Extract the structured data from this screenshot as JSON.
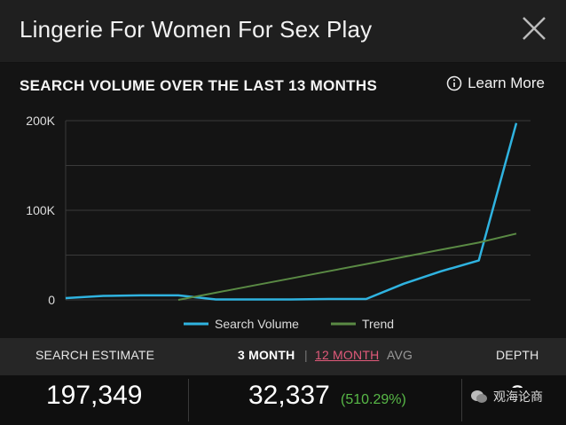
{
  "header": {
    "title": "Lingerie For Women For Sex Play"
  },
  "chart_section": {
    "title": "SEARCH VOLUME OVER THE LAST 13 MONTHS",
    "learn_more": "Learn More"
  },
  "chart_data": {
    "type": "line",
    "x": [
      1,
      2,
      3,
      4,
      5,
      6,
      7,
      8,
      9,
      10,
      11,
      12,
      13
    ],
    "ylim": [
      0,
      200000
    ],
    "yticks": [
      0,
      100000,
      200000
    ],
    "ytick_labels": [
      "0",
      "100K",
      "200K"
    ],
    "series": [
      {
        "name": "Search Volume",
        "color": "#2fb3e0",
        "values": [
          2000,
          4500,
          5000,
          5000,
          500,
          500,
          500,
          1000,
          1000,
          18000,
          32000,
          44000,
          197349
        ]
      },
      {
        "name": "Trend",
        "color": "#5a8a44",
        "values": [
          null,
          null,
          null,
          0,
          8000,
          16000,
          24000,
          32000,
          40000,
          48000,
          56000,
          64000,
          74000
        ]
      }
    ],
    "legend": [
      "Search Volume",
      "Trend"
    ]
  },
  "stats": {
    "search_estimate_label": "SEARCH ESTIMATE",
    "three_month_label": "3 MONTH",
    "separator": "|",
    "twelve_month_label": "12 MONTH",
    "avg_label": "AVG",
    "depth_label": "DEPTH",
    "search_estimate_value": "197,349",
    "three_month_value": "32,337",
    "three_month_change": "(510.29%)",
    "depth_value": "3"
  },
  "brand": {
    "text": "观海论商"
  }
}
